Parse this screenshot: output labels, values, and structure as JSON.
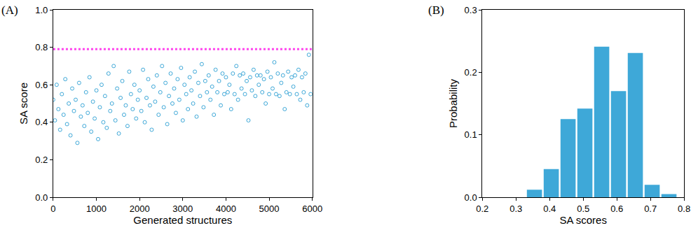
{
  "chart_data": [
    {
      "type": "scatter",
      "panel": "(A)",
      "x_label": "Generated structures",
      "y_label": "SA score",
      "xlim": [
        0,
        6000
      ],
      "xticks": [
        0,
        1000,
        2000,
        3000,
        4000,
        5000,
        6000
      ],
      "ylim": [
        0,
        1
      ],
      "yticks": [
        {
          "value": 0,
          "label": "0.0"
        },
        0.2,
        0.4,
        0.6,
        0.8,
        {
          "value": 1,
          "label": "1.0"
        }
      ],
      "grid": false,
      "series": [
        {
          "type": "scatter",
          "color": "#3ea8d8",
          "marker": "circle-open",
          "x": [
            0,
            40,
            80,
            120,
            160,
            200,
            240,
            280,
            320,
            360,
            400,
            440,
            480,
            520,
            560,
            600,
            640,
            680,
            720,
            760,
            800,
            840,
            880,
            920,
            960,
            1000,
            1040,
            1080,
            1120,
            1160,
            1200,
            1240,
            1280,
            1320,
            1360,
            1400,
            1440,
            1480,
            1520,
            1560,
            1600,
            1640,
            1680,
            1720,
            1760,
            1800,
            1840,
            1880,
            1920,
            1960,
            2000,
            2040,
            2080,
            2120,
            2160,
            2200,
            2240,
            2280,
            2320,
            2360,
            2400,
            2440,
            2480,
            2520,
            2560,
            2600,
            2640,
            2680,
            2720,
            2760,
            2800,
            2840,
            2880,
            2920,
            2960,
            3000,
            3040,
            3080,
            3120,
            3160,
            3200,
            3240,
            3280,
            3320,
            3360,
            3400,
            3440,
            3480,
            3520,
            3560,
            3600,
            3640,
            3680,
            3720,
            3760,
            3800,
            3840,
            3880,
            3920,
            3960,
            4000,
            4040,
            4080,
            4120,
            4160,
            4200,
            4240,
            4280,
            4320,
            4360,
            4400,
            4440,
            4480,
            4520,
            4560,
            4600,
            4640,
            4680,
            4720,
            4760,
            4800,
            4840,
            4880,
            4920,
            4960,
            5000,
            5040,
            5080,
            5120,
            5160,
            5200,
            5240,
            5280,
            5320,
            5360,
            5400,
            5440,
            5480,
            5520,
            5560,
            5600,
            5640,
            5680,
            5720,
            5760,
            5800,
            5840,
            5880,
            5920,
            5960
          ],
          "values": [
            0.52,
            0.41,
            0.6,
            0.47,
            0.36,
            0.55,
            0.44,
            0.63,
            0.39,
            0.5,
            0.33,
            0.58,
            0.46,
            0.52,
            0.29,
            0.61,
            0.43,
            0.49,
            0.38,
            0.56,
            0.45,
            0.64,
            0.35,
            0.51,
            0.42,
            0.57,
            0.31,
            0.48,
            0.6,
            0.4,
            0.54,
            0.37,
            0.66,
            0.46,
            0.5,
            0.7,
            0.41,
            0.58,
            0.34,
            0.53,
            0.62,
            0.44,
            0.49,
            0.38,
            0.67,
            0.55,
            0.47,
            0.6,
            0.42,
            0.52,
            0.57,
            0.46,
            0.68,
            0.4,
            0.53,
            0.63,
            0.49,
            0.36,
            0.59,
            0.51,
            0.65,
            0.44,
            0.56,
            0.7,
            0.48,
            0.61,
            0.39,
            0.54,
            0.66,
            0.5,
            0.58,
            0.45,
            0.63,
            0.52,
            0.69,
            0.41,
            0.6,
            0.55,
            0.47,
            0.64,
            0.57,
            0.5,
            0.67,
            0.43,
            0.61,
            0.54,
            0.71,
            0.48,
            0.62,
            0.56,
            0.65,
            0.52,
            0.59,
            0.44,
            0.68,
            0.56,
            0.62,
            0.49,
            0.66,
            0.55,
            0.64,
            0.56,
            0.6,
            0.47,
            0.66,
            0.55,
            0.7,
            0.52,
            0.65,
            0.58,
            0.66,
            0.55,
            0.62,
            0.41,
            0.64,
            0.57,
            0.68,
            0.54,
            0.65,
            0.6,
            0.65,
            0.56,
            0.63,
            0.5,
            0.67,
            0.55,
            0.64,
            0.58,
            0.72,
            0.55,
            0.66,
            0.54,
            0.61,
            0.65,
            0.47,
            0.56,
            0.67,
            0.55,
            0.64,
            0.59,
            0.65,
            0.55,
            0.68,
            0.52,
            0.64,
            0.56,
            0.66,
            0.49,
            0.76,
            0.55
          ]
        },
        {
          "type": "line",
          "color": "#ff44ee",
          "line_style": "dotted",
          "x": [
            0,
            6000
          ],
          "values": [
            0.79,
            0.79
          ]
        }
      ]
    },
    {
      "type": "histogram",
      "panel": "(B)",
      "x_label": "SA scores",
      "y_label": "Probability",
      "xlim": [
        0.2,
        0.8
      ],
      "xticks": [
        0.2,
        0.3,
        0.4,
        0.5,
        0.6,
        0.7,
        0.8
      ],
      "ylim": [
        0,
        0.3
      ],
      "yticks": [
        {
          "value": 0,
          "label": "0.0"
        },
        0.1,
        0.2,
        0.3
      ],
      "grid": false,
      "color": "#3ea8d8",
      "bins": [
        0.33,
        0.38,
        0.43,
        0.48,
        0.53,
        0.58,
        0.63,
        0.68,
        0.73,
        0.78
      ],
      "values": [
        0.012,
        0.045,
        0.125,
        0.142,
        0.241,
        0.17,
        0.231,
        0.02,
        0.005
      ]
    }
  ]
}
